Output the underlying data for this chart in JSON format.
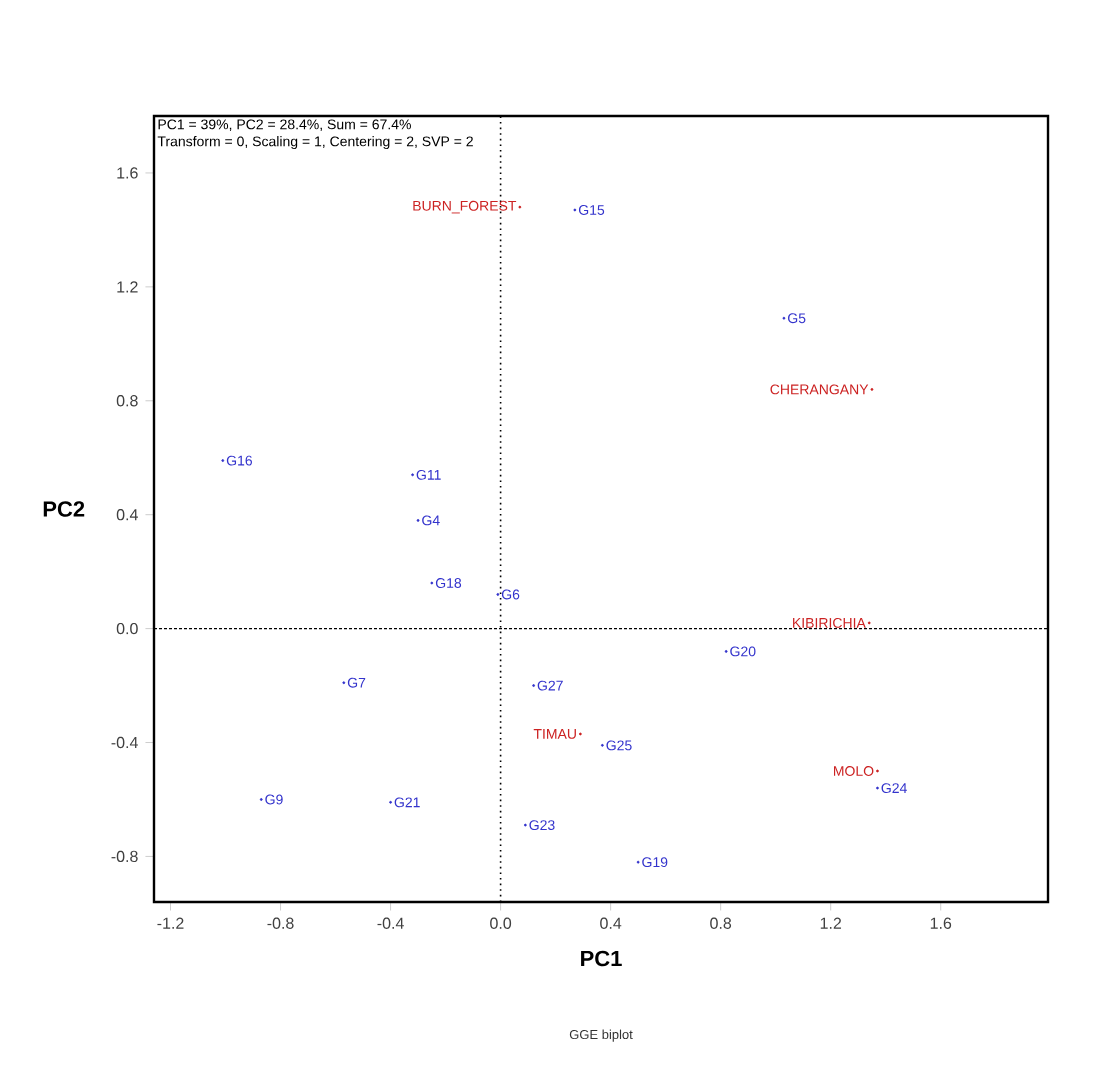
{
  "chart_data": {
    "type": "scatter",
    "xlabel": "PC1",
    "ylabel": "PC2",
    "xlim": [
      -1.26,
      1.99
    ],
    "ylim": [
      -0.96,
      1.8
    ],
    "xticks": [
      -1.2,
      -0.8,
      -0.4,
      {
        "value": 0,
        "label": "0.0"
      },
      0.4,
      0.8,
      1.2,
      1.6
    ],
    "yticks": [
      -0.8,
      -0.4,
      {
        "value": 0,
        "label": "0.0"
      },
      0.4,
      0.8,
      1.2,
      1.6
    ],
    "grid": false,
    "series": [
      {
        "color": "#3333cc",
        "x": [
          0.27,
          1.03,
          -1.01,
          -0.32,
          -0.3,
          -0.25,
          -0.01,
          0.82,
          -0.57,
          0.12,
          0.37,
          1.37,
          -0.87,
          -0.4,
          0.09,
          0.5
        ],
        "values": [
          1.47,
          1.09,
          0.59,
          0.54,
          0.38,
          0.16,
          0.12,
          -0.08,
          -0.19,
          -0.2,
          -0.41,
          -0.56,
          -0.6,
          -0.61,
          -0.69,
          -0.82
        ],
        "value_labels": [
          "G15",
          "G5",
          "G16",
          "G11",
          "G4",
          "G18",
          "G6",
          "G20",
          "G7",
          "G27",
          "G25",
          "G24",
          "G9",
          "G21",
          "G23",
          "G19"
        ]
      },
      {
        "color": "#cc2222",
        "x": [
          0.07,
          1.35,
          1.34,
          0.29,
          1.37
        ],
        "values": [
          1.48,
          0.84,
          0.02,
          -0.37,
          -0.5
        ],
        "value_labels": [
          "BURN_FOREST",
          "CHERANGANY",
          "KIBIRICHIA",
          "TIMAU",
          "MOLO"
        ]
      }
    ],
    "ref_lines": [
      {
        "axis": "x",
        "value": 0,
        "line_style": "dotted"
      },
      {
        "axis": "y",
        "value": 0,
        "line_style": "dashed"
      }
    ],
    "annotations": [
      "PC1 = 39%, PC2 = 28.4%, Sum = 67.4%",
      "Transform = 0, Scaling = 1, Centering = 2, SVP = 2",
      "GGE biplot"
    ]
  }
}
